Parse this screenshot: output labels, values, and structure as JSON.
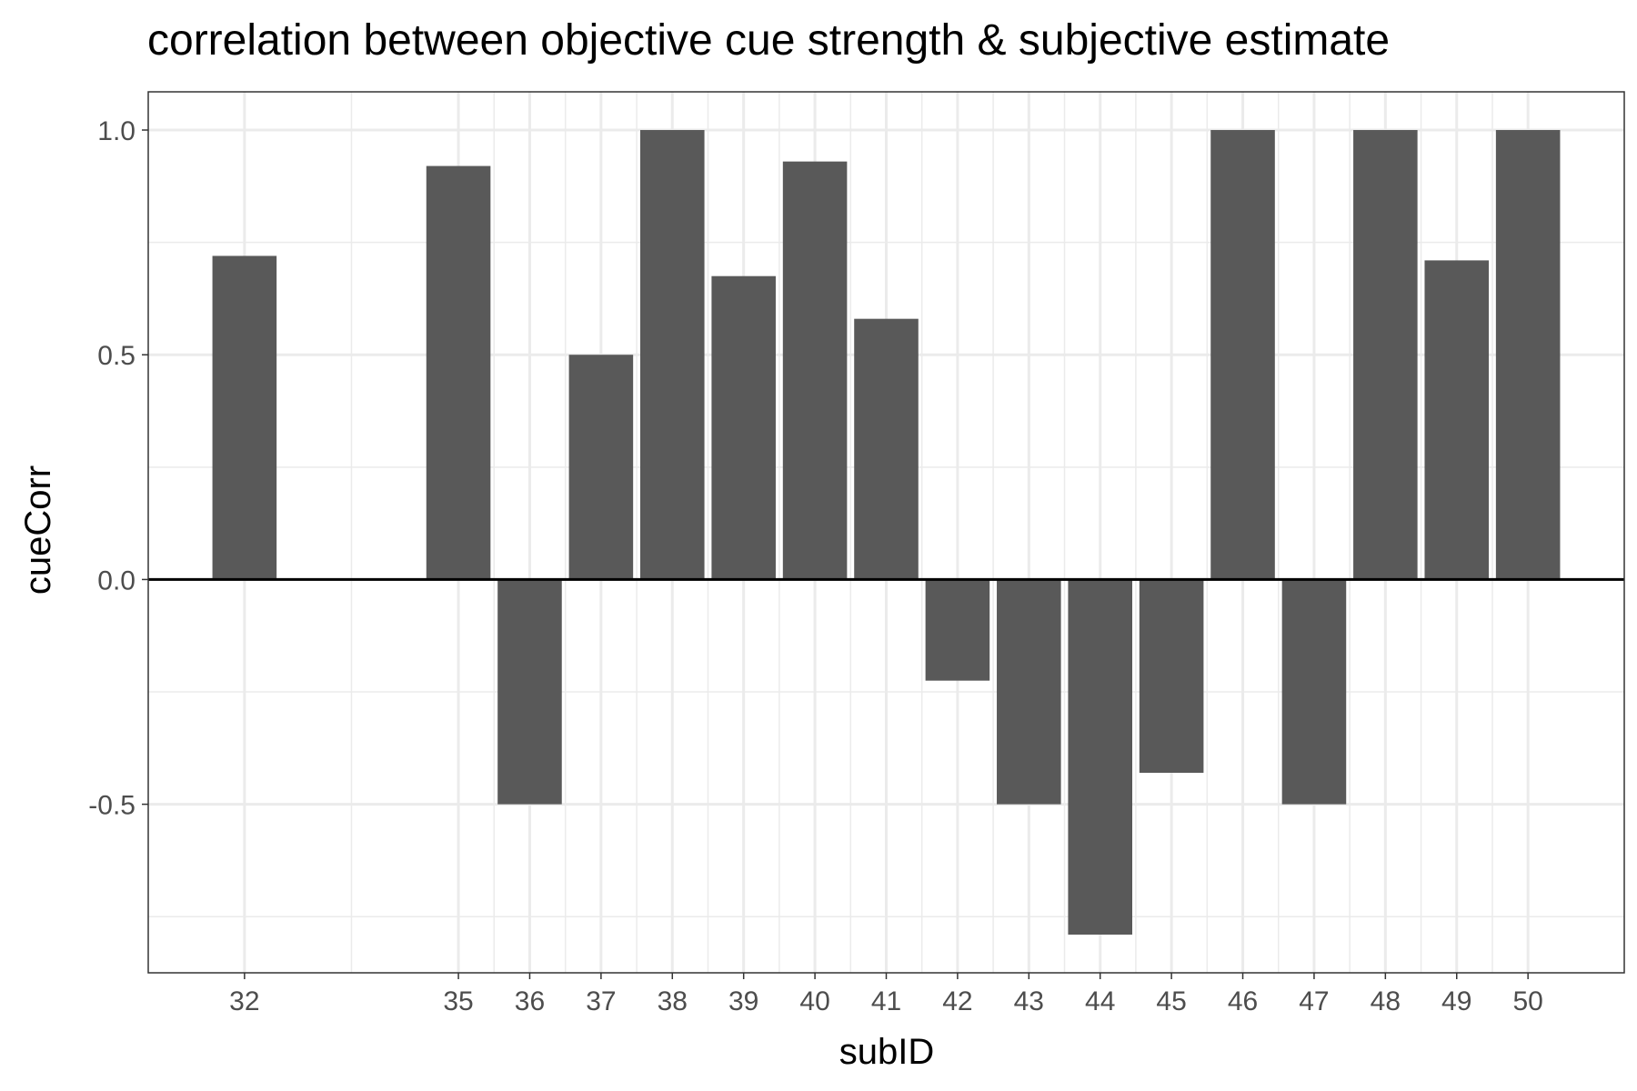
{
  "chart_data": {
    "type": "bar",
    "title": "correlation between objective cue strength & subjective estimate",
    "xlabel": "subID",
    "ylabel": "cueCorr",
    "x": [
      32,
      35,
      36,
      37,
      38,
      39,
      40,
      41,
      42,
      43,
      44,
      45,
      46,
      47,
      48,
      49,
      50
    ],
    "values": [
      0.72,
      0.92,
      -0.5,
      0.5,
      1.0,
      0.675,
      0.93,
      0.58,
      -0.225,
      -0.5,
      -0.79,
      -0.43,
      1.0,
      -0.5,
      1.0,
      0.71,
      1.0
    ],
    "xlim": [
      30.65,
      51.35
    ],
    "ylim": [
      -0.875,
      1.085
    ],
    "yticks": [
      -0.5,
      0.0,
      0.5,
      1.0
    ],
    "ytick_labels": [
      "-0.5",
      "0.0",
      "0.5",
      "1.0"
    ],
    "xtick_labels": [
      "32",
      "35",
      "36",
      "37",
      "38",
      "39",
      "40",
      "41",
      "42",
      "43",
      "44",
      "45",
      "46",
      "47",
      "48",
      "49",
      "50"
    ],
    "bar_color": "#595959",
    "grid": true,
    "zero_line": true
  }
}
